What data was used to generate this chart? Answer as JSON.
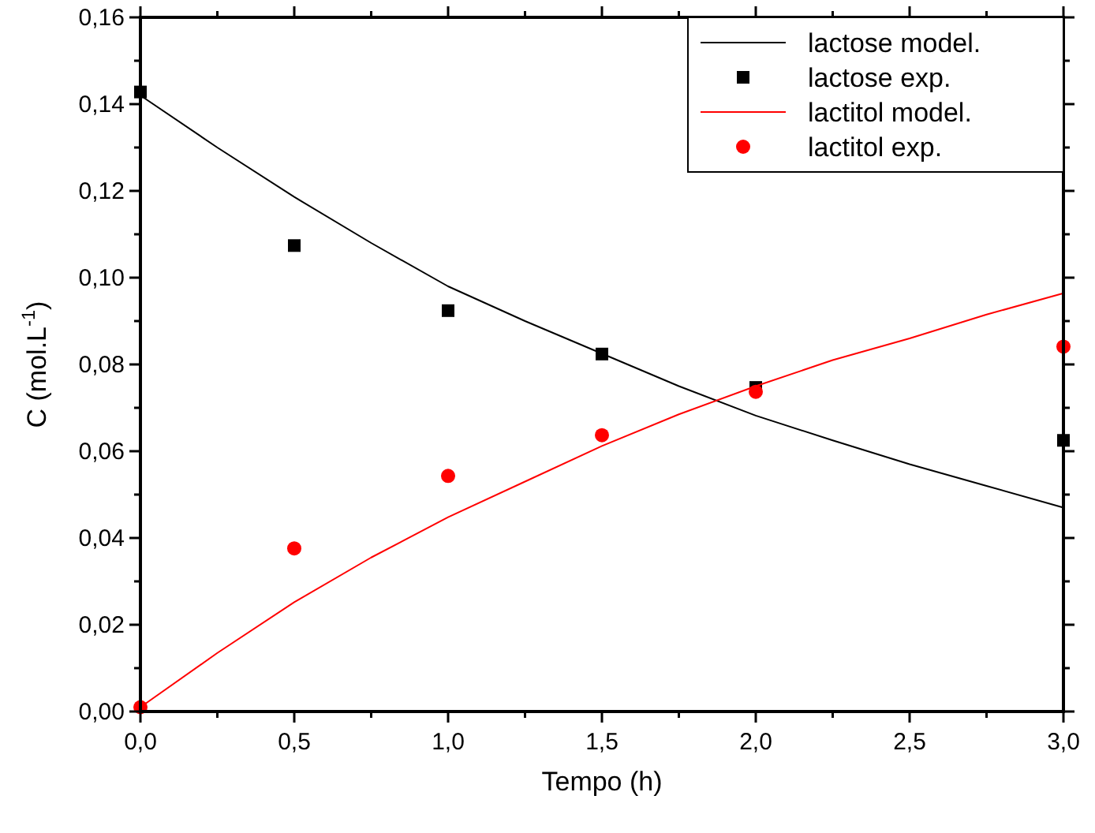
{
  "chart_data": {
    "type": "line",
    "xlabel": "Tempo (h)",
    "ylabel": "C (mol.L$^{-1}$)",
    "xlim": [
      0,
      3
    ],
    "xticks": [
      {
        "value": 0,
        "label": "0,0"
      },
      {
        "value": 0.5,
        "label": "0,5"
      },
      {
        "value": 1,
        "label": "1,0"
      },
      {
        "value": 1.5,
        "label": "1,5"
      },
      {
        "value": 2,
        "label": "2,0"
      },
      {
        "value": 2.5,
        "label": "2,5"
      },
      {
        "value": 3,
        "label": "3,0"
      }
    ],
    "ylim": [
      0,
      0.16
    ],
    "yticks": [
      {
        "value": 0,
        "label": "0,00"
      },
      {
        "value": 0.02,
        "label": "0,02"
      },
      {
        "value": 0.04,
        "label": "0,04"
      },
      {
        "value": 0.06,
        "label": "0,06"
      },
      {
        "value": 0.08,
        "label": "0,08"
      },
      {
        "value": 0.1,
        "label": "0,10"
      },
      {
        "value": 0.12,
        "label": "0,12"
      },
      {
        "value": 0.14,
        "label": "0,14"
      },
      {
        "value": 0.16,
        "label": "0,16"
      }
    ],
    "grid": false,
    "legend": "top right",
    "series": [
      {
        "name": "lactose model.",
        "color": "#000000",
        "marker": "none",
        "line_style": "solid",
        "x": [
          0,
          0.25,
          0.5,
          0.75,
          1,
          1.25,
          1.5,
          1.75,
          2,
          2.25,
          2.5,
          2.75,
          3
        ],
        "values": [
          0.142,
          0.13,
          0.1186,
          0.108,
          0.098,
          0.09,
          0.0825,
          0.075,
          0.0682,
          0.0625,
          0.057,
          0.052,
          0.047
        ]
      },
      {
        "name": "lactose exp.",
        "type": "scatter",
        "color": "#000000",
        "marker": "square",
        "x": [
          0,
          0.5,
          1,
          1.5,
          2,
          3
        ],
        "values": [
          0.1428,
          0.1074,
          0.0924,
          0.0824,
          0.0747,
          0.0625
        ]
      },
      {
        "name": "lactitol model.",
        "color": "#ff0000",
        "marker": "none",
        "line_style": "solid",
        "x": [
          0,
          0.25,
          0.5,
          0.75,
          1,
          1.25,
          1.5,
          1.75,
          2,
          2.25,
          2.5,
          2.75,
          3
        ],
        "values": [
          0.001,
          0.0135,
          0.0252,
          0.0355,
          0.0448,
          0.053,
          0.0612,
          0.0685,
          0.075,
          0.081,
          0.086,
          0.0915,
          0.0964
        ]
      },
      {
        "name": "lactitol exp.",
        "type": "scatter",
        "color": "#ff0000",
        "marker": "circle",
        "x": [
          0,
          0.5,
          1,
          1.5,
          2,
          3
        ],
        "values": [
          0.001,
          0.0376,
          0.0543,
          0.0637,
          0.0737,
          0.0841
        ]
      }
    ]
  }
}
